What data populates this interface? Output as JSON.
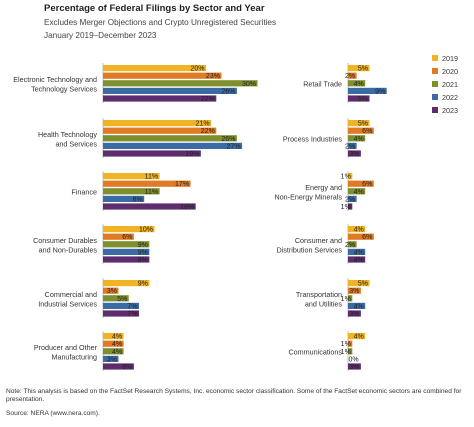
{
  "title": "Percentage of Federal Filings by Sector and Year",
  "subtitle1": "Excludes Merger Objections and Crypto Unregistered Securities",
  "subtitle2": "January 2019–December 2023",
  "note": "Note: This analysis is based on the FactSet Research Systems, Inc. economic sector classification. Some of the FactSet economic sectors are combined for presentation.",
  "source": "Source: NERA (www.nera.com).",
  "chart_data": {
    "type": "bar",
    "orientation": "horizontal",
    "series": [
      {
        "name": "2019",
        "color": "#F0B323"
      },
      {
        "name": "2020",
        "color": "#E07A24"
      },
      {
        "name": "2021",
        "color": "#7E8F2E"
      },
      {
        "name": "2022",
        "color": "#3B6BA5"
      },
      {
        "name": "2023",
        "color": "#5E2D6E"
      }
    ],
    "legend": "right",
    "groups": [
      {
        "label": "Electronic Technology and Technology Services",
        "label_lines": [
          "Electronic Technology and",
          "Technology Services"
        ],
        "values": [
          20,
          23,
          30,
          26,
          22
        ]
      },
      {
        "label": "Health Technology and Services",
        "label_lines": [
          "Health Technology",
          "and Services"
        ],
        "values": [
          21,
          22,
          26,
          27,
          19
        ]
      },
      {
        "label": "Finance",
        "label_lines": [
          "Finance"
        ],
        "values": [
          11,
          17,
          11,
          8,
          18
        ]
      },
      {
        "label": "Consumer Durables and Non-Durables",
        "label_lines": [
          "Consumer Durables",
          "and Non-Durables"
        ],
        "values": [
          10,
          6,
          9,
          9,
          9
        ]
      },
      {
        "label": "Commercial and Industrial Services",
        "label_lines": [
          "Commercial and",
          "Industrial Services"
        ],
        "values": [
          9,
          3,
          5,
          7,
          7
        ]
      },
      {
        "label": "Producer and Other Manufacturing",
        "label_lines": [
          "Producer and Other",
          "Manufacturing"
        ],
        "values": [
          4,
          4,
          4,
          3,
          6
        ]
      },
      {
        "label": "Retail Trade",
        "label_lines": [
          "Retail Trade"
        ],
        "values": [
          5,
          2,
          4,
          9,
          5
        ]
      },
      {
        "label": "Process Industries",
        "label_lines": [
          "Process Industries"
        ],
        "values": [
          5,
          6,
          4,
          2,
          3
        ]
      },
      {
        "label": "Energy and Non-Energy Minerals",
        "label_lines": [
          "Energy and",
          "Non-Energy Minerals"
        ],
        "values": [
          1,
          6,
          4,
          2,
          1
        ]
      },
      {
        "label": "Consumer and Distribution Services",
        "label_lines": [
          "Consumer and",
          "Distribution Services"
        ],
        "values": [
          4,
          6,
          2,
          4,
          4
        ]
      },
      {
        "label": "Transportation and Utilities",
        "label_lines": [
          "Transportation",
          "and Utilities"
        ],
        "values": [
          5,
          3,
          1,
          4,
          3
        ]
      },
      {
        "label": "Communications",
        "label_lines": [
          "Communications"
        ],
        "values": [
          4,
          1,
          1,
          0,
          3
        ]
      }
    ]
  }
}
